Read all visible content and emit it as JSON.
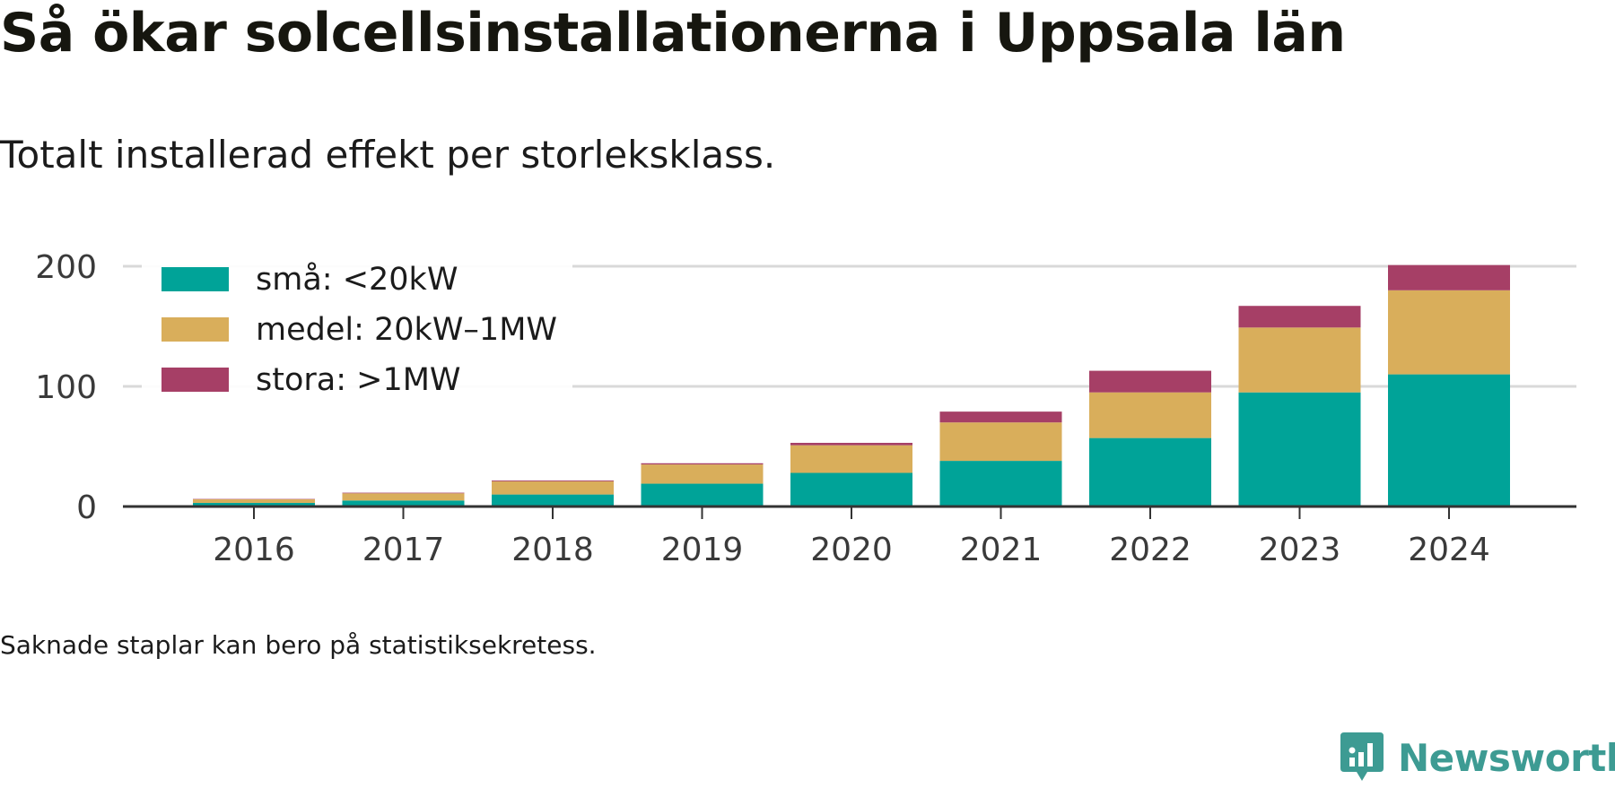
{
  "title": "Så ökar solcellsinstallationerna i Uppsala län",
  "subtitle": "Totalt installerad effekt per storleksklass.",
  "footnote": "Saknade staplar kan bero på statistiksekretess.",
  "brand": {
    "name": "Newsworthy",
    "icon": "newsworthy-logo-icon",
    "color": "#3d9b93"
  },
  "chart_data": {
    "type": "bar",
    "stacked": true,
    "title": "Så ökar solcellsinstallationerna i Uppsala län",
    "subtitle": "Totalt installerad effekt per storleksklass.",
    "xlabel": "",
    "ylabel": "",
    "categories": [
      "2016",
      "2017",
      "2018",
      "2019",
      "2020",
      "2021",
      "2022",
      "2023",
      "2024"
    ],
    "series": [
      {
        "name": "små: <20kW",
        "color": "#00a398",
        "values": [
          3,
          5,
          10,
          19,
          28,
          38,
          57,
          95,
          110
        ]
      },
      {
        "name": "medel: 20kW–1MW",
        "color": "#d9ae5b",
        "values": [
          3,
          6,
          11,
          16,
          23,
          32,
          38,
          54,
          70
        ]
      },
      {
        "name": "stora: >1MW",
        "color": "#a63f66",
        "values": [
          0.3,
          0.5,
          0.7,
          1,
          2,
          9,
          18,
          18,
          21
        ]
      }
    ],
    "yticks": [
      0,
      100,
      200
    ],
    "ylim": [
      0,
      210
    ],
    "grid": true,
    "legend_position": "top-left"
  }
}
